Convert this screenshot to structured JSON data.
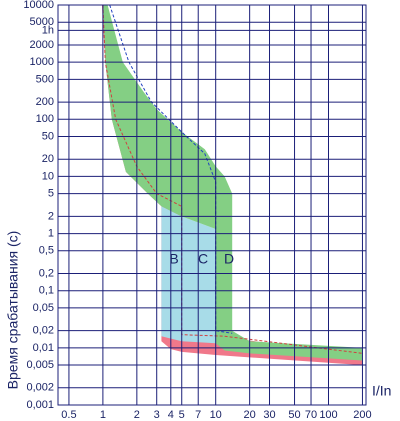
{
  "chart_data": {
    "type": "area",
    "y_label": "Время срабатывания (с)",
    "x_label": "I/In",
    "log_x": true,
    "log_y": true,
    "grid": true,
    "xlim": [
      0.4,
      215
    ],
    "ylim": [
      0.001,
      10000
    ],
    "xticks": [
      0.5,
      1,
      2,
      3,
      4,
      5,
      7,
      10,
      20,
      30,
      50,
      70,
      100,
      200
    ],
    "yticks": [
      10000,
      5000,
      {
        "value": 3600,
        "label": "1h"
      },
      2000,
      1000,
      500,
      200,
      100,
      50,
      20,
      10,
      5,
      2,
      1,
      {
        "value": 0.5,
        "label": "0,5"
      },
      {
        "value": 0.2,
        "label": "0,2"
      },
      {
        "value": 0.1,
        "label": "0,1"
      },
      {
        "value": 0.05,
        "label": "0,05"
      },
      {
        "value": 0.02,
        "label": "0,02"
      },
      {
        "value": 0.01,
        "label": "0,01"
      },
      {
        "value": 0.005,
        "label": "0,005"
      },
      {
        "value": 0.002,
        "label": "0,002"
      },
      {
        "value": 0.001,
        "label": "0,001"
      }
    ],
    "series": [
      {
        "name": "B",
        "color": "#f0788a",
        "x": [
          0.98,
          1.02,
          1.3,
          1.8,
          2.5,
          4,
          5,
          5,
          200,
          200,
          10,
          5,
          4,
          3.3,
          3.3,
          2.5,
          1.6,
          1.2,
          1.05
        ],
        "values": [
          10000,
          10000,
          1000,
          250,
          100,
          45,
          25,
          0.02,
          0.007,
          0.005,
          0.0075,
          0.0085,
          0.0095,
          0.013,
          3,
          5,
          12,
          100,
          1000
        ]
      },
      {
        "name": "C",
        "color": "#a8dce8",
        "x": [
          3.3,
          5,
          10,
          10,
          5,
          3.3
        ],
        "values": [
          3,
          2,
          1.2,
          0.012,
          0.013,
          0.016
        ]
      },
      {
        "name": "D",
        "color": "#84cf84",
        "x": [
          1.0,
          1.1,
          1.5,
          2.3,
          3,
          5,
          8,
          10,
          12,
          14,
          14,
          20,
          200,
          200,
          20,
          12,
          10,
          10,
          5,
          3.3,
          2.5,
          1.6,
          1.2,
          1.05
        ],
        "values": [
          10000,
          10000,
          1000,
          300,
          150,
          60,
          30,
          15,
          10,
          5,
          0.02,
          0.013,
          0.01,
          0.006,
          0.008,
          0.009,
          0.012,
          1.2,
          2,
          3,
          5,
          12,
          100,
          1000
        ]
      },
      {
        "color": "#d04040",
        "dashed": true,
        "x": [
          1.0,
          1.05,
          1.3,
          2,
          3,
          5,
          5,
          12,
          200
        ],
        "values": [
          10000,
          1000,
          100,
          15,
          5,
          3,
          0.017,
          0.016,
          0.008
        ]
      },
      {
        "color": "#2040c0",
        "dashed": true,
        "x": [
          1.15,
          1.7,
          2.7,
          5,
          8,
          10,
          10,
          14
        ],
        "values": [
          10000,
          1000,
          200,
          60,
          25,
          8,
          0.02,
          0.018
        ]
      }
    ]
  }
}
